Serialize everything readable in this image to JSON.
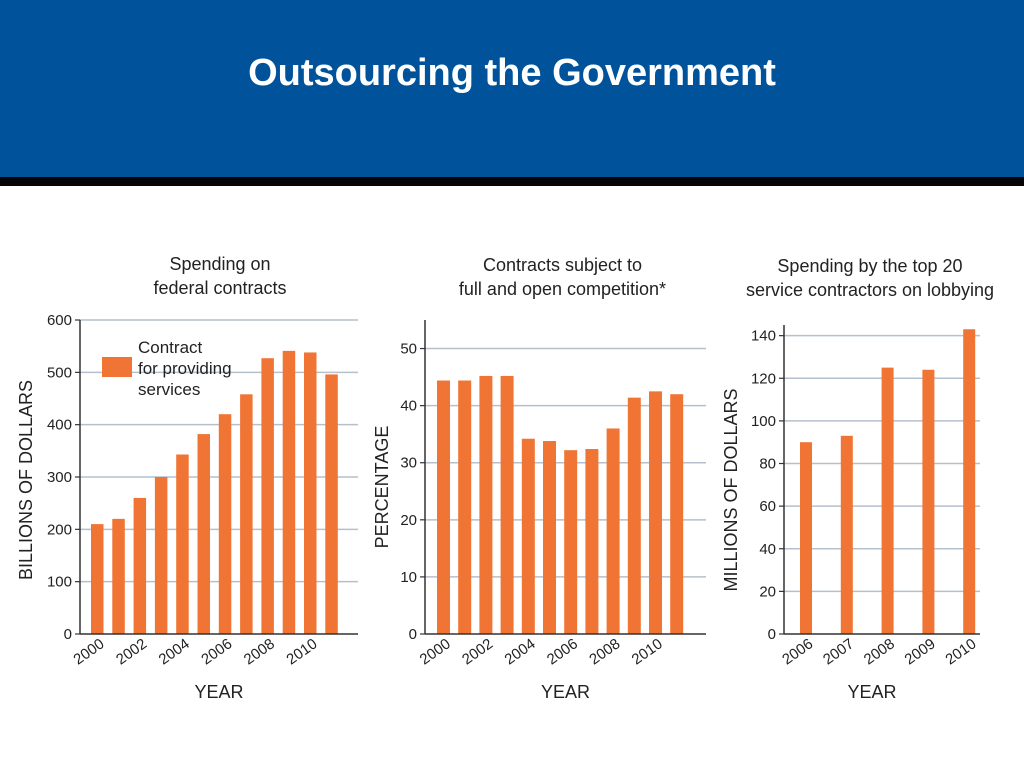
{
  "slide": {
    "title": "Outsourcing the Government"
  },
  "colors": {
    "header": "#00539b",
    "rule": "#050505",
    "bar": "#f07434",
    "grid": "#b4c0cc",
    "axis": "#333333"
  },
  "chart_data": [
    {
      "type": "bar",
      "title_lines": [
        "Spending on",
        "federal contracts"
      ],
      "xlabel": "YEAR",
      "ylabel": "BILLIONS OF DOLLARS",
      "ylim": [
        0,
        600
      ],
      "yticks": [
        0,
        100,
        200,
        300,
        400,
        500,
        600
      ],
      "categories": [
        "2000",
        "2001",
        "2002",
        "2003",
        "2004",
        "2005",
        "2006",
        "2007",
        "2008",
        "2009",
        "2010",
        "2011"
      ],
      "xtick_labels": [
        "2000",
        "",
        "2002",
        "",
        "2004",
        "",
        "2006",
        "",
        "2008",
        "",
        "2010",
        ""
      ],
      "series": [
        {
          "name": "Contract for providing services",
          "values": [
            210,
            220,
            260,
            300,
            343,
            382,
            420,
            458,
            527,
            541,
            538,
            496
          ]
        }
      ],
      "legend": {
        "lines": [
          "Contract",
          "for providing",
          "services"
        ],
        "placement": "top-left"
      },
      "grid": true
    },
    {
      "type": "bar",
      "title_lines": [
        "Contracts subject to",
        "full and open competition*"
      ],
      "xlabel": "YEAR",
      "ylabel": "PERCENTAGE",
      "ylim": [
        0,
        55
      ],
      "yticks": [
        0,
        10,
        20,
        30,
        40,
        50
      ],
      "categories": [
        "2000",
        "2001",
        "2002",
        "2003",
        "2004",
        "2005",
        "2006",
        "2007",
        "2008",
        "2009",
        "2010",
        "2011"
      ],
      "xtick_labels": [
        "2000",
        "",
        "2002",
        "",
        "2004",
        "",
        "2006",
        "",
        "2008",
        "",
        "2010",
        ""
      ],
      "series": [
        {
          "values": [
            44.4,
            44.4,
            45.2,
            45.2,
            34.2,
            33.8,
            32.2,
            32.4,
            36.0,
            41.4,
            42.5,
            42.0
          ]
        }
      ],
      "grid": true
    },
    {
      "type": "bar",
      "title_lines": [
        "Spending by the top 20",
        "service contractors on lobbying"
      ],
      "xlabel": "YEAR",
      "ylabel": "MILLIONS OF DOLLARS",
      "ylim": [
        0,
        145
      ],
      "yticks": [
        0,
        20,
        40,
        60,
        80,
        100,
        120,
        140
      ],
      "categories": [
        "2006",
        "2007",
        "2008",
        "2009",
        "2010"
      ],
      "xtick_labels": [
        "2006",
        "2007",
        "2008",
        "2009",
        "2010"
      ],
      "series": [
        {
          "values": [
            90,
            93,
            125,
            124,
            143
          ]
        }
      ],
      "grid": true
    }
  ]
}
